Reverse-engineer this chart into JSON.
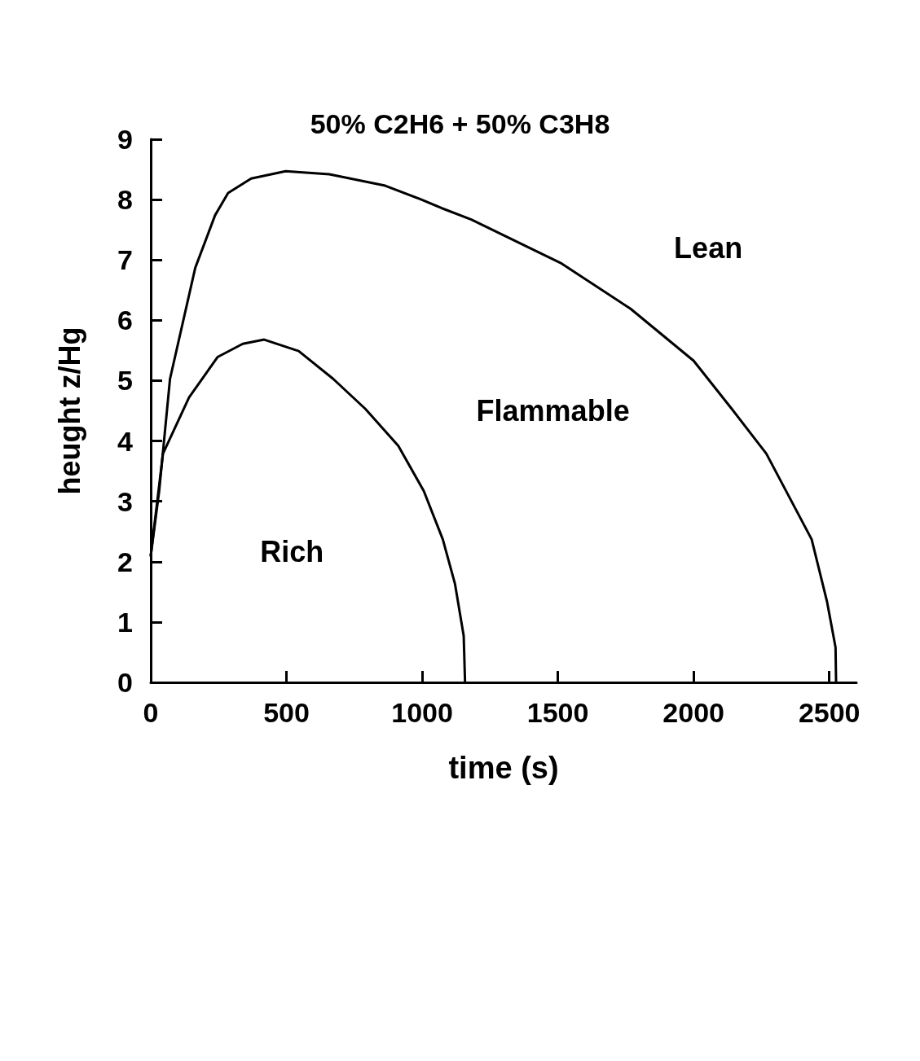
{
  "chart_data": {
    "type": "line",
    "title": "50% C2H6 + 50% C3H8",
    "xlabel": "time (s)",
    "ylabel": "heught z/Hg",
    "xlim": [
      0,
      2600
    ],
    "xticks": [
      0,
      500,
      1000,
      1500,
      2000,
      2500
    ],
    "ylim": [
      0,
      9
    ],
    "yticks": [
      0,
      1,
      2,
      3,
      4,
      5,
      6,
      7,
      8,
      9
    ],
    "grid": false,
    "marker": "none",
    "line_style": "solid",
    "series": [
      {
        "color": "#000000",
        "x": [
          0,
          31,
          71,
          164,
          237,
          285,
          370,
          497,
          658,
          864,
          992,
          1071,
          1181,
          1514,
          1768,
          2000,
          2141,
          2268,
          2435,
          2492,
          2523,
          2525
        ],
        "values": [
          2.1,
          3.17,
          5.03,
          6.87,
          7.74,
          8.11,
          8.35,
          8.47,
          8.42,
          8.23,
          8.01,
          7.86,
          7.67,
          6.94,
          6.19,
          5.33,
          4.53,
          3.79,
          2.37,
          1.33,
          0.58,
          0
        ]
      },
      {
        "color": "#000000",
        "x": [
          0,
          45,
          141,
          246,
          339,
          418,
          545,
          672,
          791,
          912,
          1006,
          1076,
          1121,
          1153,
          1158
        ],
        "values": [
          2.1,
          3.79,
          4.72,
          5.39,
          5.61,
          5.68,
          5.49,
          5.03,
          4.53,
          3.92,
          3.17,
          2.37,
          1.63,
          0.77,
          0
        ]
      }
    ],
    "annotations": [
      "Lean",
      "Flammable",
      "Rich"
    ]
  }
}
